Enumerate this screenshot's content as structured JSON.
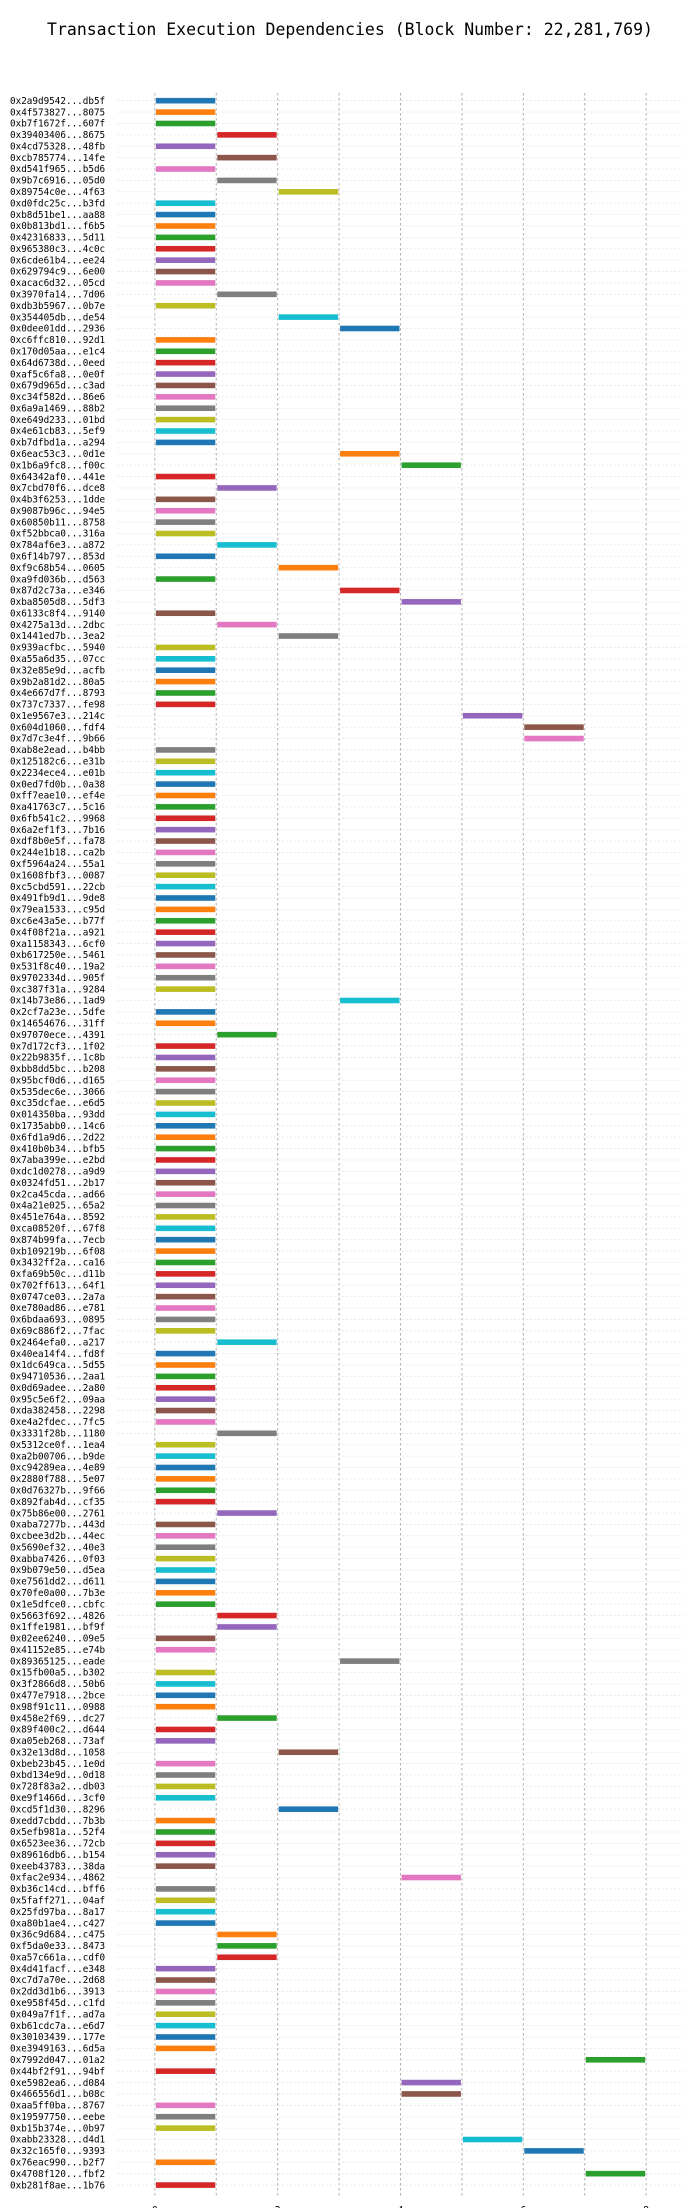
{
  "chart_data": {
    "type": "gantt",
    "title": "Transaction Execution Dependencies (Block Number: 22,281,769)",
    "xlim": [
      -0.6,
      8.6
    ],
    "x_ticks": [
      0,
      2,
      4,
      6,
      8
    ],
    "grid": "vertical dashed",
    "palette": [
      "#1f77b4",
      "#ff7f0e",
      "#2ca02c",
      "#d62728",
      "#9467bd",
      "#8c564b",
      "#e377c2",
      "#7f7f7f",
      "#bcbd22",
      "#17becf"
    ],
    "transactions": [
      {
        "label": "0x2a9d9542...db5f",
        "start": 0,
        "end": 1
      },
      {
        "label": "0x4f573827...8075",
        "start": 0,
        "end": 1
      },
      {
        "label": "0xb7f1672f...607f",
        "start": 0,
        "end": 1
      },
      {
        "label": "0x39403406...8675",
        "start": 1,
        "end": 2
      },
      {
        "label": "0x4cd75328...48fb",
        "start": 0,
        "end": 1
      },
      {
        "label": "0xcb785774...14fe",
        "start": 1,
        "end": 2
      },
      {
        "label": "0xd541f965...b5d6",
        "start": 0,
        "end": 1
      },
      {
        "label": "0x9b7c6916...05d0",
        "start": 1,
        "end": 2
      },
      {
        "label": "0x89754c0e...4f63",
        "start": 2,
        "end": 3
      },
      {
        "label": "0xd0fdc25c...b3fd",
        "start": 0,
        "end": 1
      },
      {
        "label": "0xb8d51be1...aa88",
        "start": 0,
        "end": 1
      },
      {
        "label": "0x0b813bd1...f6b5",
        "start": 0,
        "end": 1
      },
      {
        "label": "0x42316833...5d11",
        "start": 0,
        "end": 1
      },
      {
        "label": "0x965380c3...4c0c",
        "start": 0,
        "end": 1
      },
      {
        "label": "0x6cde61b4...ee24",
        "start": 0,
        "end": 1
      },
      {
        "label": "0x629794c9...6e00",
        "start": 0,
        "end": 1
      },
      {
        "label": "0xacac6d32...05cd",
        "start": 0,
        "end": 1
      },
      {
        "label": "0x3970fa14...7d06",
        "start": 1,
        "end": 2
      },
      {
        "label": "0xdb3b5967...0b7e",
        "start": 0,
        "end": 1
      },
      {
        "label": "0x354405db...de54",
        "start": 2,
        "end": 3
      },
      {
        "label": "0x0dee01dd...2936",
        "start": 3,
        "end": 4
      },
      {
        "label": "0xc6ffc810...92d1",
        "start": 0,
        "end": 1
      },
      {
        "label": "0x170d05aa...e1c4",
        "start": 0,
        "end": 1
      },
      {
        "label": "0x64d6738d...0eed",
        "start": 0,
        "end": 1
      },
      {
        "label": "0xaf5c6fa8...0e0f",
        "start": 0,
        "end": 1
      },
      {
        "label": "0x679d965d...c3ad",
        "start": 0,
        "end": 1
      },
      {
        "label": "0xc34f582d...86e6",
        "start": 0,
        "end": 1
      },
      {
        "label": "0x6a9a1469...88b2",
        "start": 0,
        "end": 1
      },
      {
        "label": "0xe649d233...01bd",
        "start": 0,
        "end": 1
      },
      {
        "label": "0x4e61cb83...5ef9",
        "start": 0,
        "end": 1
      },
      {
        "label": "0xb7dfbd1a...a294",
        "start": 0,
        "end": 1
      },
      {
        "label": "0x6eac53c3...0d1e",
        "start": 3,
        "end": 4
      },
      {
        "label": "0x1b6a9fc8...f00c",
        "start": 4,
        "end": 5
      },
      {
        "label": "0x64342af0...441e",
        "start": 0,
        "end": 1
      },
      {
        "label": "0x7cbd70f6...dce8",
        "start": 1,
        "end": 2
      },
      {
        "label": "0x4b3f6253...1dde",
        "start": 0,
        "end": 1
      },
      {
        "label": "0x9087b96c...94e5",
        "start": 0,
        "end": 1
      },
      {
        "label": "0x60850b11...8758",
        "start": 0,
        "end": 1
      },
      {
        "label": "0xf52bbca0...316a",
        "start": 0,
        "end": 1
      },
      {
        "label": "0x784af6e3...a872",
        "start": 1,
        "end": 2
      },
      {
        "label": "0x6f14b797...853d",
        "start": 0,
        "end": 1
      },
      {
        "label": "0xf9c68b54...0605",
        "start": 2,
        "end": 3
      },
      {
        "label": "0xa9fd036b...d563",
        "start": 0,
        "end": 1
      },
      {
        "label": "0x87d2c73a...e346",
        "start": 3,
        "end": 4
      },
      {
        "label": "0xba8505d8...5df3",
        "start": 4,
        "end": 5
      },
      {
        "label": "0x6133c8f4...9140",
        "start": 0,
        "end": 1
      },
      {
        "label": "0x4275a13d...2dbc",
        "start": 1,
        "end": 2
      },
      {
        "label": "0x1441ed7b...3ea2",
        "start": 2,
        "end": 3
      },
      {
        "label": "0x939acfbc...5940",
        "start": 0,
        "end": 1
      },
      {
        "label": "0xa55a6d35...07cc",
        "start": 0,
        "end": 1
      },
      {
        "label": "0x32e85e9d...acfb",
        "start": 0,
        "end": 1
      },
      {
        "label": "0x9b2a81d2...80a5",
        "start": 0,
        "end": 1
      },
      {
        "label": "0x4e667d7f...8793",
        "start": 0,
        "end": 1
      },
      {
        "label": "0x737c7337...fe98",
        "start": 0,
        "end": 1
      },
      {
        "label": "0x1e9567e3...214c",
        "start": 5,
        "end": 6
      },
      {
        "label": "0x604d1060...fdf4",
        "start": 6,
        "end": 7
      },
      {
        "label": "0x7d7c3e4f...9b66",
        "start": 6,
        "end": 7
      },
      {
        "label": "0xab8e2ead...b4bb",
        "start": 0,
        "end": 1
      },
      {
        "label": "0x125182c6...e31b",
        "start": 0,
        "end": 1
      },
      {
        "label": "0x2234ece4...e01b",
        "start": 0,
        "end": 1
      },
      {
        "label": "0x0ed7fd0b...0a38",
        "start": 0,
        "end": 1
      },
      {
        "label": "0xff7eae10...ef4e",
        "start": 0,
        "end": 1
      },
      {
        "label": "0xa41763c7...5c16",
        "start": 0,
        "end": 1
      },
      {
        "label": "0x6fb541c2...9968",
        "start": 0,
        "end": 1
      },
      {
        "label": "0x6a2ef1f3...7b16",
        "start": 0,
        "end": 1
      },
      {
        "label": "0xdf8b0e5f...fa78",
        "start": 0,
        "end": 1
      },
      {
        "label": "0x244e1b18...ca2b",
        "start": 0,
        "end": 1
      },
      {
        "label": "0xf5964a24...55a1",
        "start": 0,
        "end": 1
      },
      {
        "label": "0x1608fbf3...0087",
        "start": 0,
        "end": 1
      },
      {
        "label": "0xc5cbd591...22cb",
        "start": 0,
        "end": 1
      },
      {
        "label": "0x491fb9d1...9de8",
        "start": 0,
        "end": 1
      },
      {
        "label": "0x79ea1533...c95d",
        "start": 0,
        "end": 1
      },
      {
        "label": "0xc6e43a5e...b77f",
        "start": 0,
        "end": 1
      },
      {
        "label": "0x4f08f21a...a921",
        "start": 0,
        "end": 1
      },
      {
        "label": "0xa1158343...6cf0",
        "start": 0,
        "end": 1
      },
      {
        "label": "0xb617250e...5461",
        "start": 0,
        "end": 1
      },
      {
        "label": "0x531f8c40...19a2",
        "start": 0,
        "end": 1
      },
      {
        "label": "0x9702334d...905f",
        "start": 0,
        "end": 1
      },
      {
        "label": "0xc387f31a...9284",
        "start": 0,
        "end": 1
      },
      {
        "label": "0x14b73e86...1ad9",
        "start": 3,
        "end": 4
      },
      {
        "label": "0x2cf7a23e...5dfe",
        "start": 0,
        "end": 1
      },
      {
        "label": "0x14654676...31ff",
        "start": 0,
        "end": 1
      },
      {
        "label": "0x97070ece...4391",
        "start": 1,
        "end": 2
      },
      {
        "label": "0x7d172cf3...1f02",
        "start": 0,
        "end": 1
      },
      {
        "label": "0x22b9835f...1c8b",
        "start": 0,
        "end": 1
      },
      {
        "label": "0xbb8dd5bc...b208",
        "start": 0,
        "end": 1
      },
      {
        "label": "0x95bcf0d6...d165",
        "start": 0,
        "end": 1
      },
      {
        "label": "0x535dec6e...3066",
        "start": 0,
        "end": 1
      },
      {
        "label": "0xc35dcfae...e6d5",
        "start": 0,
        "end": 1
      },
      {
        "label": "0x014350ba...93dd",
        "start": 0,
        "end": 1
      },
      {
        "label": "0x1735abb0...14c6",
        "start": 0,
        "end": 1
      },
      {
        "label": "0x6fd1a9d6...2d22",
        "start": 0,
        "end": 1
      },
      {
        "label": "0x410b0b34...bfb5",
        "start": 0,
        "end": 1
      },
      {
        "label": "0x7aba399e...e2bd",
        "start": 0,
        "end": 1
      },
      {
        "label": "0xdc1d0278...a9d9",
        "start": 0,
        "end": 1
      },
      {
        "label": "0x0324fd51...2b17",
        "start": 0,
        "end": 1
      },
      {
        "label": "0x2ca45cda...ad66",
        "start": 0,
        "end": 1
      },
      {
        "label": "0x4a21e025...65a2",
        "start": 0,
        "end": 1
      },
      {
        "label": "0x451e764a...8592",
        "start": 0,
        "end": 1
      },
      {
        "label": "0xca08520f...67f8",
        "start": 0,
        "end": 1
      },
      {
        "label": "0x874b99fa...7ecb",
        "start": 0,
        "end": 1
      },
      {
        "label": "0xb109219b...6f08",
        "start": 0,
        "end": 1
      },
      {
        "label": "0x3432ff2a...ca16",
        "start": 0,
        "end": 1
      },
      {
        "label": "0xfa69b50c...d11b",
        "start": 0,
        "end": 1
      },
      {
        "label": "0x702ff613...64f1",
        "start": 0,
        "end": 1
      },
      {
        "label": "0x0747ce03...2a7a",
        "start": 0,
        "end": 1
      },
      {
        "label": "0xe780ad86...e781",
        "start": 0,
        "end": 1
      },
      {
        "label": "0x6bdaa693...0895",
        "start": 0,
        "end": 1
      },
      {
        "label": "0x69c886f2...7fac",
        "start": 0,
        "end": 1
      },
      {
        "label": "0x2464efa0...a217",
        "start": 1,
        "end": 2
      },
      {
        "label": "0x40ea14f4...fd8f",
        "start": 0,
        "end": 1
      },
      {
        "label": "0x1dc649ca...5d55",
        "start": 0,
        "end": 1
      },
      {
        "label": "0x94710536...2aa1",
        "start": 0,
        "end": 1
      },
      {
        "label": "0x0d69adee...2a80",
        "start": 0,
        "end": 1
      },
      {
        "label": "0x95c5e6f2...09aa",
        "start": 0,
        "end": 1
      },
      {
        "label": "0xda382458...2298",
        "start": 0,
        "end": 1
      },
      {
        "label": "0xe4a2fdec...7fc5",
        "start": 0,
        "end": 1
      },
      {
        "label": "0x3331f28b...1180",
        "start": 1,
        "end": 2
      },
      {
        "label": "0x5312ce0f...1ea4",
        "start": 0,
        "end": 1
      },
      {
        "label": "0xa2b00706...b9de",
        "start": 0,
        "end": 1
      },
      {
        "label": "0xc94289ea...4e89",
        "start": 0,
        "end": 1
      },
      {
        "label": "0x2880f788...5e07",
        "start": 0,
        "end": 1
      },
      {
        "label": "0x0d76327b...9f66",
        "start": 0,
        "end": 1
      },
      {
        "label": "0x892fab4d...cf35",
        "start": 0,
        "end": 1
      },
      {
        "label": "0x75b86e00...2761",
        "start": 1,
        "end": 2
      },
      {
        "label": "0xaba7277b...443d",
        "start": 0,
        "end": 1
      },
      {
        "label": "0xcbee3d2b...44ec",
        "start": 0,
        "end": 1
      },
      {
        "label": "0x5690ef32...40e3",
        "start": 0,
        "end": 1
      },
      {
        "label": "0xabba7426...0f03",
        "start": 0,
        "end": 1
      },
      {
        "label": "0x9b079e50...d5ea",
        "start": 0,
        "end": 1
      },
      {
        "label": "0xe7561dd2...d611",
        "start": 0,
        "end": 1
      },
      {
        "label": "0x70fe0a00...7b3e",
        "start": 0,
        "end": 1
      },
      {
        "label": "0x1e5dfce0...cbfc",
        "start": 0,
        "end": 1
      },
      {
        "label": "0x5663f692...4826",
        "start": 1,
        "end": 2
      },
      {
        "label": "0x1ffe1981...bf9f",
        "start": 1,
        "end": 2
      },
      {
        "label": "0x02ee6240...09e5",
        "start": 0,
        "end": 1
      },
      {
        "label": "0x41152e85...e74b",
        "start": 0,
        "end": 1
      },
      {
        "label": "0x89365125...eade",
        "start": 3,
        "end": 4
      },
      {
        "label": "0x15fb00a5...b302",
        "start": 0,
        "end": 1
      },
      {
        "label": "0x3f2866d8...50b6",
        "start": 0,
        "end": 1
      },
      {
        "label": "0x477e7918...2bce",
        "start": 0,
        "end": 1
      },
      {
        "label": "0x98f91c11...0988",
        "start": 0,
        "end": 1
      },
      {
        "label": "0x458e2f69...dc27",
        "start": 1,
        "end": 2
      },
      {
        "label": "0x89f400c2...d644",
        "start": 0,
        "end": 1
      },
      {
        "label": "0xa05eb268...73af",
        "start": 0,
        "end": 1
      },
      {
        "label": "0x32e13d8d...1058",
        "start": 2,
        "end": 3
      },
      {
        "label": "0xbeb23b45...1e0d",
        "start": 0,
        "end": 1
      },
      {
        "label": "0xbd134e9d...0d18",
        "start": 0,
        "end": 1
      },
      {
        "label": "0x728f83a2...db03",
        "start": 0,
        "end": 1
      },
      {
        "label": "0xe9f1466d...3cf0",
        "start": 0,
        "end": 1
      },
      {
        "label": "0xcd5f1d30...8296",
        "start": 2,
        "end": 3
      },
      {
        "label": "0xedd7cbdd...7b3b",
        "start": 0,
        "end": 1
      },
      {
        "label": "0x5efb981a...52f4",
        "start": 0,
        "end": 1
      },
      {
        "label": "0x6523ee36...72cb",
        "start": 0,
        "end": 1
      },
      {
        "label": "0x89616db6...b154",
        "start": 0,
        "end": 1
      },
      {
        "label": "0xeeb43783...38da",
        "start": 0,
        "end": 1
      },
      {
        "label": "0xfac2e934...4862",
        "start": 4,
        "end": 5
      },
      {
        "label": "0xb36c14cd...bff6",
        "start": 0,
        "end": 1
      },
      {
        "label": "0x5faff271...04af",
        "start": 0,
        "end": 1
      },
      {
        "label": "0x25fd97ba...8a17",
        "start": 0,
        "end": 1
      },
      {
        "label": "0xa80b1ae4...c427",
        "start": 0,
        "end": 1
      },
      {
        "label": "0x36c9d684...c475",
        "start": 1,
        "end": 2
      },
      {
        "label": "0xf5da0e33...8473",
        "start": 1,
        "end": 2
      },
      {
        "label": "0xa57c661a...cdf0",
        "start": 1,
        "end": 2
      },
      {
        "label": "0x4d41facf...e348",
        "start": 0,
        "end": 1
      },
      {
        "label": "0xc7d7a70e...2d68",
        "start": 0,
        "end": 1
      },
      {
        "label": "0x2dd3d1b6...3913",
        "start": 0,
        "end": 1
      },
      {
        "label": "0xe958f45d...c1fd",
        "start": 0,
        "end": 1
      },
      {
        "label": "0x049a7f1f...ad7a",
        "start": 0,
        "end": 1
      },
      {
        "label": "0xb61cdc7a...e6d7",
        "start": 0,
        "end": 1
      },
      {
        "label": "0x30103439...177e",
        "start": 0,
        "end": 1
      },
      {
        "label": "0xe3949163...6d5a",
        "start": 0,
        "end": 1
      },
      {
        "label": "0x7992d047...01a2",
        "start": 7,
        "end": 8
      },
      {
        "label": "0x44bf2f91...94bf",
        "start": 0,
        "end": 1
      },
      {
        "label": "0xe5982ea6...d084",
        "start": 4,
        "end": 5
      },
      {
        "label": "0x466556d1...b08c",
        "start": 4,
        "end": 5
      },
      {
        "label": "0xaa5ff0ba...8767",
        "start": 0,
        "end": 1
      },
      {
        "label": "0x19597750...eebe",
        "start": 0,
        "end": 1
      },
      {
        "label": "0xb15b374e...0b97",
        "start": 0,
        "end": 1
      },
      {
        "label": "0xabb23328...d4d1",
        "start": 5,
        "end": 6
      },
      {
        "label": "0x32c165f0...9393",
        "start": 6,
        "end": 7
      },
      {
        "label": "0x76eac990...b2f7",
        "start": 0,
        "end": 1
      },
      {
        "label": "0x4708f120...fbf2",
        "start": 7,
        "end": 8
      },
      {
        "label": "0xb281f8ae...1b76",
        "start": 0,
        "end": 1
      }
    ]
  }
}
